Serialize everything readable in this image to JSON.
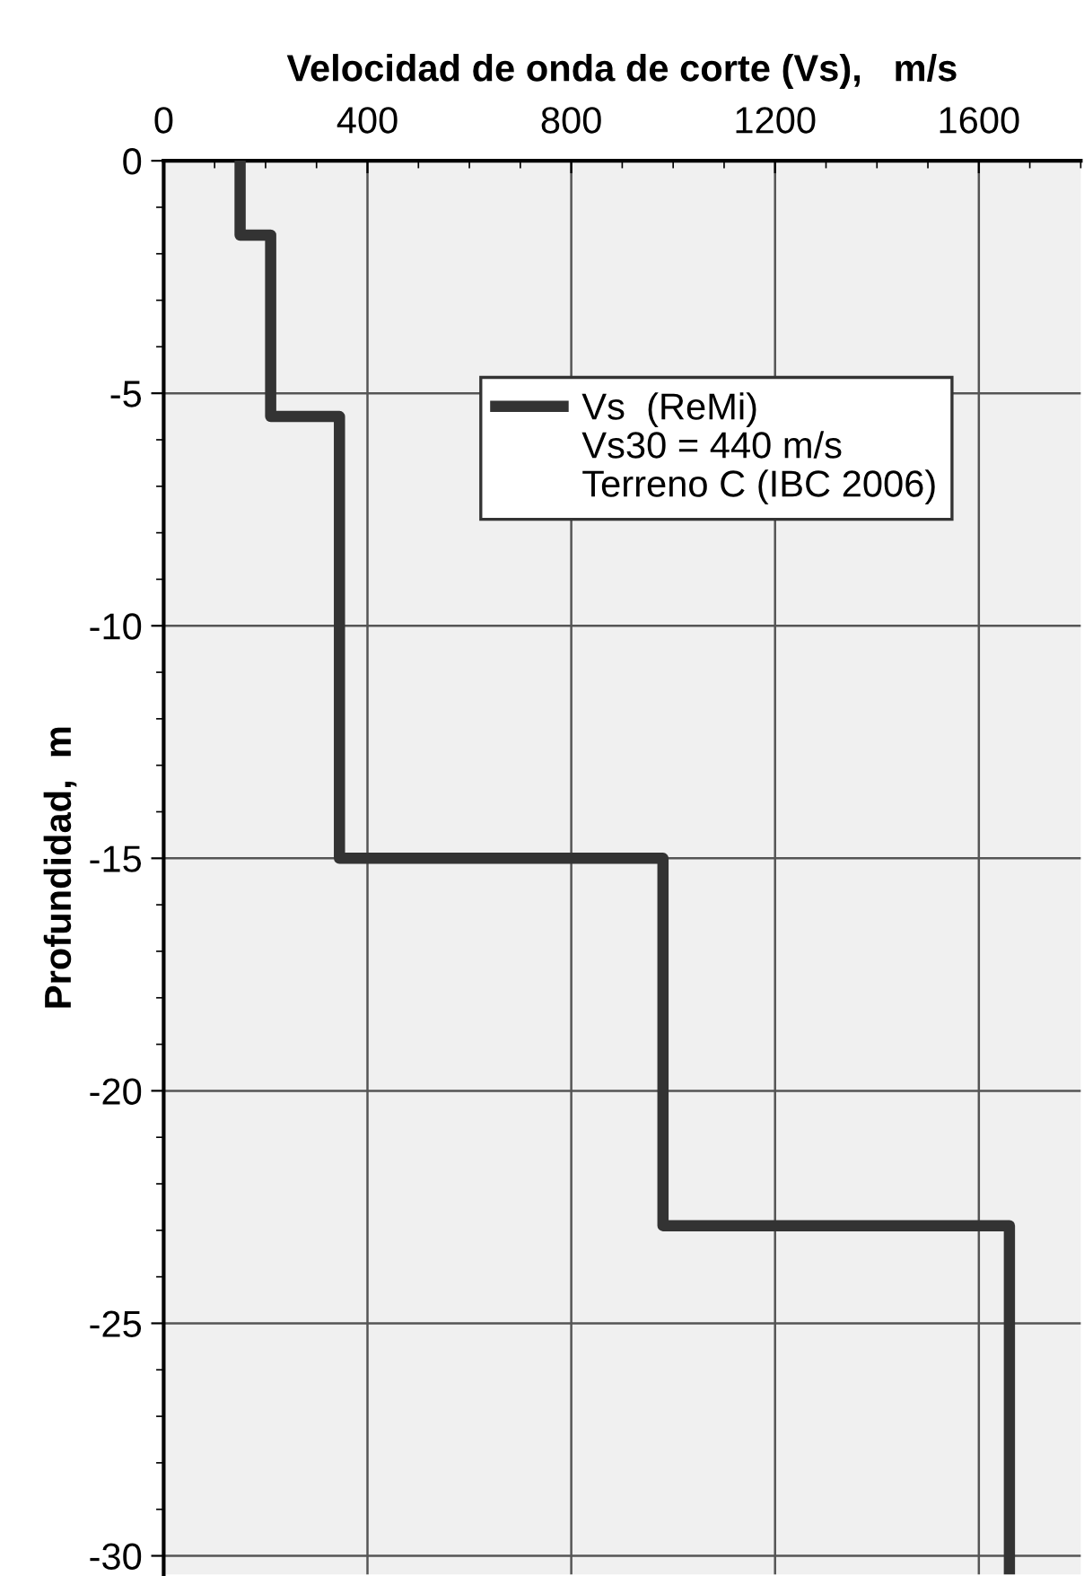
{
  "chart_data": {
    "type": "line",
    "xlabel": "Velocidad de onda de corte (Vs),   m/s",
    "ylabel": "Profundidad,  m",
    "xlim": [
      0,
      1800
    ],
    "xticks": [
      0,
      400,
      800,
      1200,
      1600
    ],
    "ylim": [
      -30.4,
      0
    ],
    "yticks": [
      0,
      -5,
      -10,
      -15,
      -20,
      -25,
      -30
    ],
    "grid": true,
    "legend": "top right",
    "marker": "none",
    "line_style": "solid",
    "series": [
      {
        "name": "Vs  (ReMi)",
        "color": "#333333",
        "x": [
          150,
          150,
          210,
          210,
          345,
          345,
          980,
          980,
          1660,
          1660
        ],
        "values": [
          0,
          -1.6,
          -1.6,
          -5.5,
          -5.5,
          -15,
          -15,
          -22.9,
          -22.9,
          -30.4
        ]
      }
    ],
    "annotations": [
      "Vs30 = 440 m/s",
      "Terreno C (IBC 2006)"
    ]
  }
}
